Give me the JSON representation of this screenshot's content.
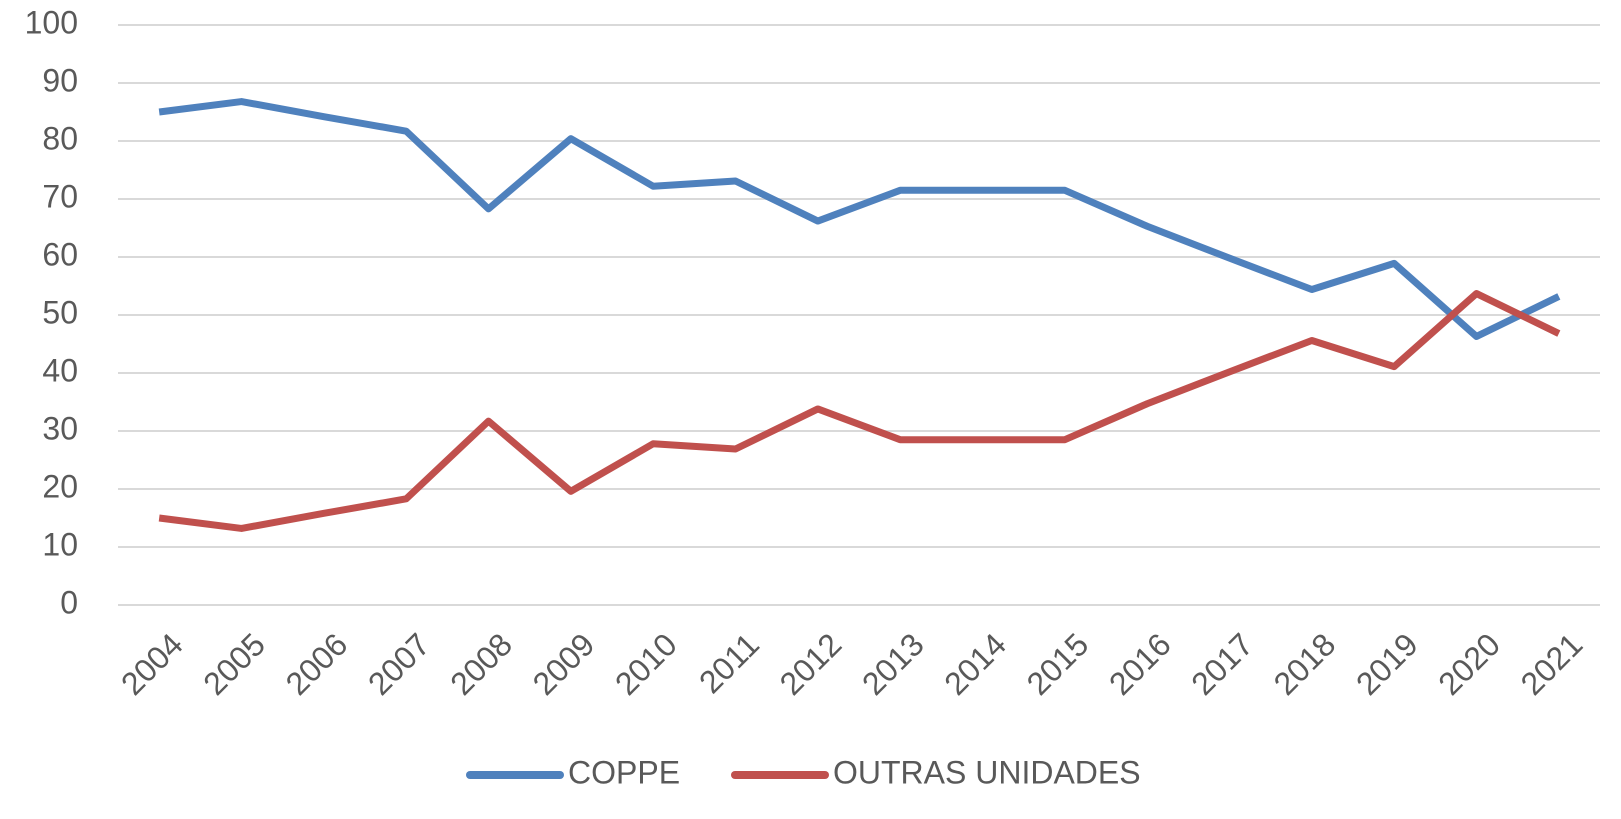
{
  "chart_data": {
    "type": "line",
    "categories": [
      "2004",
      "2005",
      "2006",
      "2007",
      "2008",
      "2009",
      "2010",
      "2011",
      "2012",
      "2013",
      "2014",
      "2015",
      "2016",
      "2017",
      "2018",
      "2019",
      "2020",
      "2021"
    ],
    "series": [
      {
        "name": "COPPE",
        "color": "#4f81bd",
        "values": [
          85.0,
          86.8,
          84.2,
          81.7,
          68.3,
          80.4,
          72.2,
          73.1,
          66.2,
          71.5,
          71.5,
          71.5,
          65.3,
          59.8,
          54.4,
          58.9,
          46.3,
          53.2
        ]
      },
      {
        "name": "OUTRAS UNIDADES",
        "color": "#c0504d",
        "values": [
          15.0,
          13.2,
          15.8,
          18.3,
          31.7,
          19.6,
          27.8,
          26.9,
          33.8,
          28.5,
          28.5,
          28.5,
          34.7,
          40.2,
          45.6,
          41.1,
          53.7,
          46.8
        ]
      }
    ],
    "ylim": [
      0,
      100
    ],
    "yticks": [
      0,
      10,
      20,
      30,
      40,
      50,
      60,
      70,
      80,
      90,
      100
    ],
    "grid": true
  }
}
